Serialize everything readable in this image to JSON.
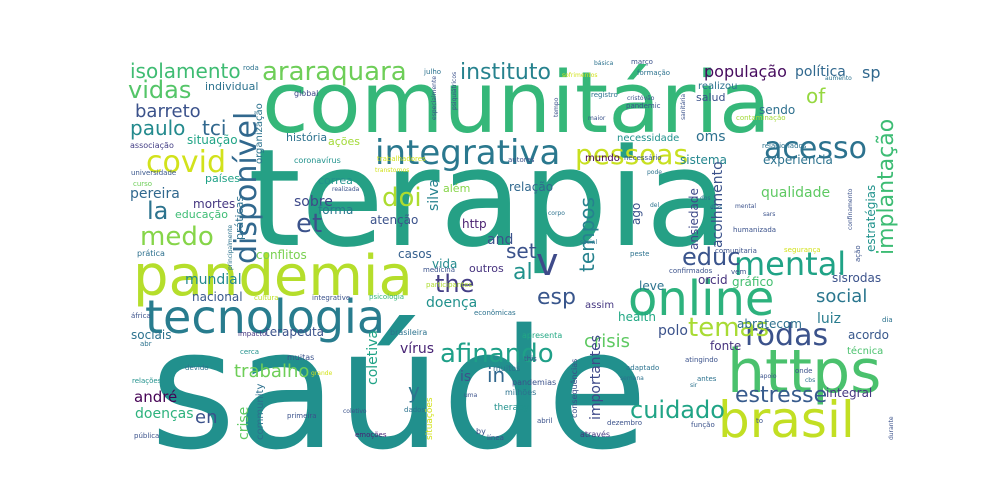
{
  "words": [
    {
      "text": "saúde",
      "color": "#21908d"
    },
    {
      "text": "terapia",
      "color": "#25a085"
    },
    {
      "text": "comunitária",
      "color": "#35b779"
    },
    {
      "text": "pandemia",
      "color": "#b5de2b"
    },
    {
      "text": "tecnologia",
      "color": "#287c8e"
    },
    {
      "text": "online",
      "color": "#2db27d"
    },
    {
      "text": "https",
      "color": "#4ac16d"
    },
    {
      "text": "brasil",
      "color": "#c2df23"
    },
    {
      "text": "integrativa",
      "color": "#2a788e"
    },
    {
      "text": "mental",
      "color": "#20a386"
    },
    {
      "text": "acesso",
      "color": "#2c728e"
    },
    {
      "text": "araraquara",
      "color": "#6ece58"
    },
    {
      "text": "pessoas",
      "color": "#c8e020"
    },
    {
      "text": "covid",
      "color": "#d2e21b"
    },
    {
      "text": "disponível",
      "color": "#31688e"
    },
    {
      "text": "v",
      "color": "#3e4a89"
    },
    {
      "text": "rodas",
      "color": "#3b528b"
    },
    {
      "text": "afinando",
      "color": "#1fa088"
    },
    {
      "text": "temas",
      "color": "#a8db34"
    },
    {
      "text": "cuidado",
      "color": "#20a486"
    },
    {
      "text": "estresse",
      "color": "#375b8d"
    },
    {
      "text": "vidas",
      "color": "#54c568"
    },
    {
      "text": "instituto",
      "color": "#26828e"
    },
    {
      "text": "isolamento",
      "color": "#3fbc73"
    },
    {
      "text": "implantação",
      "color": "#3dbc74"
    },
    {
      "text": "medo",
      "color": "#86d549"
    },
    {
      "text": "educ",
      "color": "#3a548c"
    },
    {
      "text": "the",
      "color": "#433e85"
    },
    {
      "text": "doi",
      "color": "#addc30"
    },
    {
      "text": "et",
      "color": "#3b528b"
    },
    {
      "text": "la",
      "color": "#2c738e"
    },
    {
      "text": "al",
      "color": "#20928c"
    },
    {
      "text": "esp",
      "color": "#39568c"
    },
    {
      "text": "paulo",
      "color": "#238a8d"
    },
    {
      "text": "tci",
      "color": "#31688e"
    },
    {
      "text": "barreto",
      "color": "#3b528b"
    },
    {
      "text": "tempos",
      "color": "#26828e"
    },
    {
      "text": "trabalho",
      "color": "#6ece58"
    },
    {
      "text": "social",
      "color": "#2a768e"
    },
    {
      "text": "crisis",
      "color": "#5ec962"
    },
    {
      "text": "população",
      "color": "#460b5e"
    },
    {
      "text": "of",
      "color": "#95d840"
    },
    {
      "text": "sp",
      "color": "#31688e"
    },
    {
      "text": "política",
      "color": "#31688e"
    },
    {
      "text": "oms",
      "color": "#2d708e"
    },
    {
      "text": "set",
      "color": "#3b528b"
    },
    {
      "text": "en",
      "color": "#3b528b"
    },
    {
      "text": "in",
      "color": "#31688e"
    },
    {
      "text": "y",
      "color": "#2c738e"
    },
    {
      "text": "and",
      "color": "#3b528b"
    },
    {
      "text": "mundial",
      "color": "#23898e"
    },
    {
      "text": "sobre",
      "color": "#3e4989"
    },
    {
      "text": "andré",
      "color": "#440154"
    },
    {
      "text": "doenças",
      "color": "#2db27d"
    },
    {
      "text": "pereira",
      "color": "#31688e"
    },
    {
      "text": "mortes",
      "color": "#453781"
    },
    {
      "text": "situação",
      "color": "#20a486"
    },
    {
      "text": "sendo",
      "color": "#2d708e"
    },
    {
      "text": "sistema",
      "color": "#24868e"
    },
    {
      "text": "experiência",
      "color": "#2c728e"
    },
    {
      "text": "qualidade",
      "color": "#5ec962"
    },
    {
      "text": "estratégias",
      "color": "#20928c"
    },
    {
      "text": "acolhimento",
      "color": "#3b528b"
    },
    {
      "text": "ansiedade",
      "color": "#3e4989"
    },
    {
      "text": "crise",
      "color": "#5ec962"
    },
    {
      "text": "coletiva",
      "color": "#20a386"
    },
    {
      "text": "vírus",
      "color": "#482475"
    },
    {
      "text": "importantes",
      "color": "#3e4989"
    },
    {
      "text": "polo",
      "color": "#3b528b"
    },
    {
      "text": "luiz",
      "color": "#287c8e"
    },
    {
      "text": "integral",
      "color": "#453781"
    },
    {
      "text": "doença",
      "color": "#21918c"
    },
    {
      "text": "leve",
      "color": "#2c728e"
    },
    {
      "text": "vida",
      "color": "#238a8d"
    },
    {
      "text": "http",
      "color": "#481f70"
    },
    {
      "text": "relação",
      "color": "#31688e"
    },
    {
      "text": "orcid",
      "color": "#46337e"
    },
    {
      "text": "gráfico",
      "color": "#44bf70"
    },
    {
      "text": "sisrodas",
      "color": "#3b528b"
    },
    {
      "text": "abratecom",
      "color": "#2d708e"
    },
    {
      "text": "acordo",
      "color": "#38588c"
    },
    {
      "text": "fonte",
      "color": "#46337e"
    },
    {
      "text": "sociais",
      "color": "#2c728e"
    },
    {
      "text": "terapeuta",
      "color": "#3b528b"
    },
    {
      "text": "nacional",
      "color": "#38588c"
    },
    {
      "text": "conflitos",
      "color": "#7ad151"
    },
    {
      "text": "casos",
      "color": "#345f8d"
    },
    {
      "text": "outros",
      "color": "#46327e"
    },
    {
      "text": "forma",
      "color": "#29798e"
    },
    {
      "text": "educação",
      "color": "#3dbc74"
    },
    {
      "text": "práticas",
      "color": "#2d708e"
    },
    {
      "text": "atenção",
      "color": "#3b528b"
    },
    {
      "text": "além",
      "color": "#86d549"
    },
    {
      "text": "ago",
      "color": "#3b528b"
    },
    {
      "text": "correa",
      "color": "#21918c"
    },
    {
      "text": "silva",
      "color": "#26828e"
    },
    {
      "text": "países",
      "color": "#1fa187"
    },
    {
      "text": "organização",
      "color": "#2c728e"
    },
    {
      "text": "história",
      "color": "#2c728e"
    },
    {
      "text": "ações",
      "color": "#a2da37"
    },
    {
      "text": "individual",
      "color": "#2c728e"
    },
    {
      "text": "necessidade",
      "color": "#21918c"
    },
    {
      "text": "mundo",
      "color": "#440154"
    },
    {
      "text": "salud",
      "color": "#3b528b"
    },
    {
      "text": "realizou",
      "color": "#2c728e"
    },
    {
      "text": "health",
      "color": "#22a884"
    },
    {
      "text": "assim",
      "color": "#453781"
    },
    {
      "text": "is",
      "color": "#3b528b"
    },
    {
      "text": "técnica",
      "color": "#4ac16d"
    },
    {
      "text": "therapy",
      "color": "#21918c"
    },
    {
      "text": "community",
      "color": "#2d708e"
    },
    {
      "text": "global",
      "color": "#3e4989"
    },
    {
      "text": "associação",
      "color": "#433e85"
    },
    {
      "text": "coronavírus",
      "color": "#20928c"
    },
    {
      "text": "universidade",
      "color": "#39568c"
    },
    {
      "text": "curso",
      "color": "#6ece58"
    },
    {
      "text": "prática",
      "color": "#2d708e"
    },
    {
      "text": "cultura",
      "color": "#bddf26"
    },
    {
      "text": "integrative",
      "color": "#3b528b"
    },
    {
      "text": "psicologia",
      "color": "#35b779"
    },
    {
      "text": "participantes",
      "color": "#addc30"
    },
    {
      "text": "econômicas",
      "color": "#2c728e"
    },
    {
      "text": "brasileira",
      "color": "#2c728e"
    },
    {
      "text": "apresenta",
      "color": "#22a884"
    },
    {
      "text": "muitas",
      "color": "#3b528b"
    },
    {
      "text": "muitos",
      "color": "#2c728e"
    },
    {
      "text": "pandemias",
      "color": "#3b528b"
    },
    {
      "text": "milhões",
      "color": "#2c728e"
    },
    {
      "text": "situações",
      "color": "#d2e21b"
    },
    {
      "text": "consequências",
      "color": "#3b528b"
    },
    {
      "text": "dezembro",
      "color": "#3b528b"
    },
    {
      "text": "abril",
      "color": "#3b528b"
    },
    {
      "text": "através",
      "color": "#453781"
    },
    {
      "text": "função",
      "color": "#3b528b"
    },
    {
      "text": "by",
      "color": "#3b528b"
    },
    {
      "text": "línea",
      "color": "#3b528b"
    },
    {
      "text": "emoções",
      "color": "#482475"
    },
    {
      "text": "pública",
      "color": "#3b528b"
    },
    {
      "text": "primeira",
      "color": "#3b528b"
    },
    {
      "text": "devido",
      "color": "#2c728e"
    },
    {
      "text": "relações",
      "color": "#21918c"
    },
    {
      "text": "impacto",
      "color": "#453781"
    },
    {
      "text": "cerca",
      "color": "#21918c"
    },
    {
      "text": "adaptado",
      "color": "#2c728e"
    },
    {
      "text": "atingindo",
      "color": "#3b528b"
    },
    {
      "text": "antes",
      "color": "#2c728e"
    },
    {
      "text": "onde",
      "color": "#3b528b"
    },
    {
      "text": "humanizada",
      "color": "#3b528b"
    },
    {
      "text": "comunitaria",
      "color": "#3b528b"
    },
    {
      "text": "confirmados",
      "color": "#3b528b"
    },
    {
      "text": "vem",
      "color": "#3b528b"
    },
    {
      "text": "peste",
      "color": "#2c728e"
    },
    {
      "text": "segurança",
      "color": "#d2e21b"
    },
    {
      "text": "medicina",
      "color": "#3b528b"
    },
    {
      "text": "trabalhadores",
      "color": "#d2e21b"
    },
    {
      "text": "autores",
      "color": "#3b528b"
    },
    {
      "text": "necessário",
      "color": "#3b528b"
    },
    {
      "text": "relacionados",
      "color": "#2c728e"
    },
    {
      "text": "contaminação",
      "color": "#a2da37"
    },
    {
      "text": "pandemic",
      "color": "#3b528b"
    },
    {
      "text": "registro",
      "color": "#2c728e"
    },
    {
      "text": "sanitária",
      "color": "#3b528b"
    },
    {
      "text": "formação",
      "color": "#2c728e"
    },
    {
      "text": "março",
      "color": "#3b528b"
    },
    {
      "text": "básica",
      "color": "#2c728e"
    },
    {
      "text": "sofrimentos",
      "color": "#d2e21b"
    },
    {
      "text": "julho",
      "color": "#2c728e"
    },
    {
      "text": "psiquiátricos",
      "color": "#3b528b"
    },
    {
      "text": "especialmente",
      "color": "#3b528b"
    },
    {
      "text": "roda",
      "color": "#2c728e"
    },
    {
      "text": "aumento",
      "color": "#2c728e"
    },
    {
      "text": "maior",
      "color": "#3b528b"
    },
    {
      "text": "tempo",
      "color": "#3b528b"
    },
    {
      "text": "durante",
      "color": "#3b528b"
    },
    {
      "text": "dia",
      "color": "#2c728e"
    },
    {
      "text": "this",
      "color": "#3b528b"
    },
    {
      "text": "dados",
      "color": "#2c728e"
    },
    {
      "text": "coletivo",
      "color": "#3b528b"
    },
    {
      "text": "grande",
      "color": "#d2e21b"
    },
    {
      "text": "áfrica",
      "color": "#3b528b"
    },
    {
      "text": "abr",
      "color": "#2c728e"
    },
    {
      "text": "uma",
      "color": "#3b528b"
    },
    {
      "text": "pode",
      "color": "#2c728e"
    },
    {
      "text": "dos",
      "color": "#2c728e"
    },
    {
      "text": "sars",
      "color": "#3b528b"
    },
    {
      "text": "del",
      "color": "#2c728e"
    },
    {
      "text": "corpo",
      "color": "#2c728e"
    },
    {
      "text": "ação",
      "color": "#3b528b"
    },
    {
      "text": "confinamento",
      "color": "#3b528b"
    },
    {
      "text": "to",
      "color": "#3b528b"
    },
    {
      "text": "sir",
      "color": "#2c728e"
    },
    {
      "text": "cristóvão",
      "color": "#3b528b"
    },
    {
      "text": "principalmente",
      "color": "#2c728e"
    },
    {
      "text": "social",
      "color": "#2c728e"
    },
    {
      "text": "realizada",
      "color": "#3b528b"
    },
    {
      "text": "cbs",
      "color": "#2c728e"
    },
    {
      "text": "transtornos",
      "color": "#d2e21b"
    },
    {
      "text": "dias",
      "color": "#2c728e"
    },
    {
      "text": "mental",
      "color": "#3b528b"
    },
    {
      "text": "semana",
      "color": "#2c728e"
    },
    {
      "text": "apoio",
      "color": "#3b528b"
    }
  ]
}
